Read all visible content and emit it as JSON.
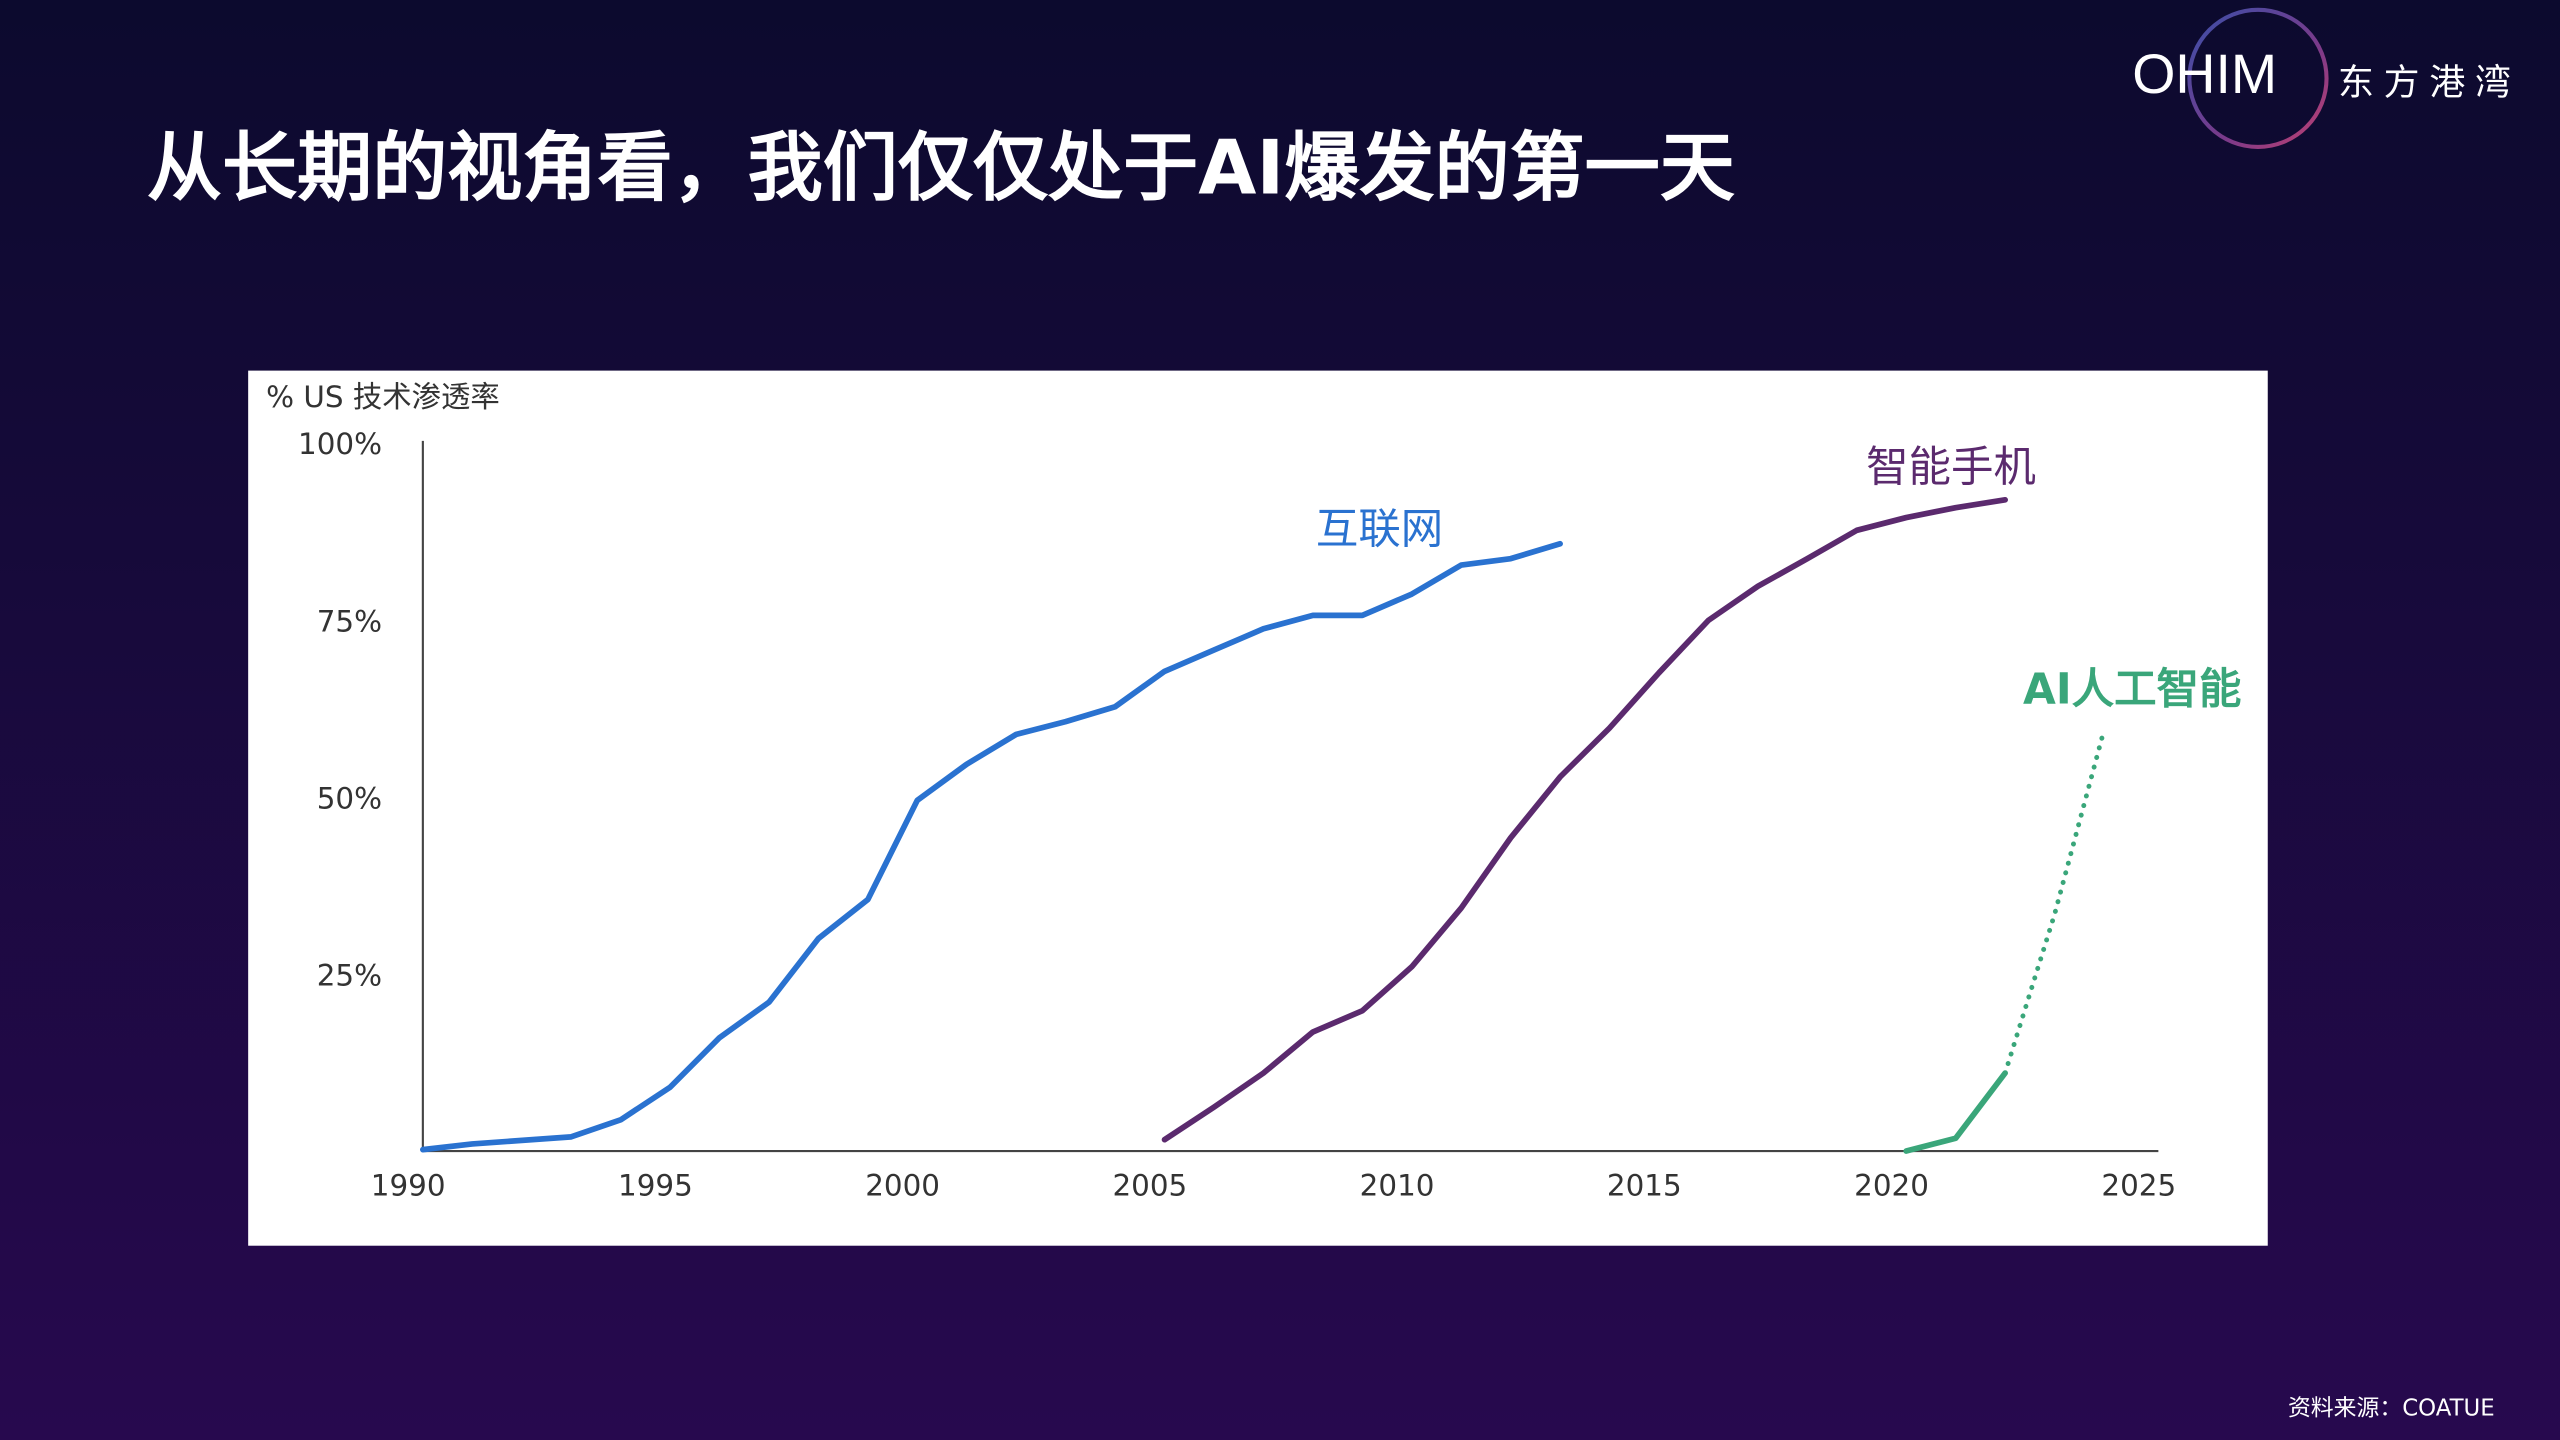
{
  "logo": {
    "mark": "OHIM",
    "name": "东方港湾"
  },
  "title": "从长期的视角看，我们仅仅处于AI爆发的第一天",
  "source": "资料来源：COATUE",
  "chart_data": {
    "type": "line",
    "y_label": "% US 技术渗透率",
    "xlim": [
      1990,
      2025
    ],
    "xticks": [
      1990,
      1995,
      2000,
      2005,
      2010,
      2015,
      2020,
      2025
    ],
    "ylim": [
      0,
      100
    ],
    "yticks": [
      {
        "value": 25,
        "label": "25%"
      },
      {
        "value": 50,
        "label": "50%"
      },
      {
        "value": 75,
        "label": "75%"
      },
      {
        "value": 100,
        "label": "100%"
      }
    ],
    "grid": false,
    "series": [
      {
        "name": "互联网",
        "color": "#2a72d0",
        "line_style": "solid",
        "x": [
          1990,
          1991,
          1993,
          1994,
          1995,
          1996,
          1997,
          1998,
          1999,
          2000,
          2001,
          2002,
          2003,
          2004,
          2005,
          2006,
          2007,
          2008,
          2009,
          2010,
          2011,
          2012,
          2013
        ],
        "values": [
          0.2,
          1,
          2,
          4.4,
          9,
          16,
          21,
          30,
          35.5,
          49.5,
          54.6,
          58.8,
          60.6,
          62.7,
          67.7,
          70.7,
          73.7,
          75.6,
          75.6,
          78.6,
          82.7,
          83.6,
          85.7
        ]
      },
      {
        "name": "智能手机",
        "color": "#5b2a6e",
        "line_style": "solid",
        "x": [
          2005,
          2006,
          2007,
          2008,
          2009,
          2010,
          2011,
          2012,
          2013,
          2014,
          2015,
          2016,
          2017,
          2018,
          2019,
          2020,
          2021,
          2022
        ],
        "values": [
          1.6,
          6.2,
          11,
          16.8,
          19.8,
          26,
          34.3,
          44.2,
          52.8,
          59.7,
          67.5,
          74.9,
          79.7,
          83.6,
          87.6,
          89.4,
          90.8,
          91.9
        ]
      },
      {
        "name": "AI人工智能",
        "color": "#3aa67a",
        "line_style": "solid",
        "x": [
          2020,
          2021,
          2022
        ],
        "values": [
          0,
          1.8,
          11
        ]
      },
      {
        "color": "#3aa67a",
        "line_style": "dotted",
        "x": [
          2022,
          2023,
          2024
        ],
        "values": [
          11,
          33.4,
          59.4
        ]
      }
    ]
  }
}
